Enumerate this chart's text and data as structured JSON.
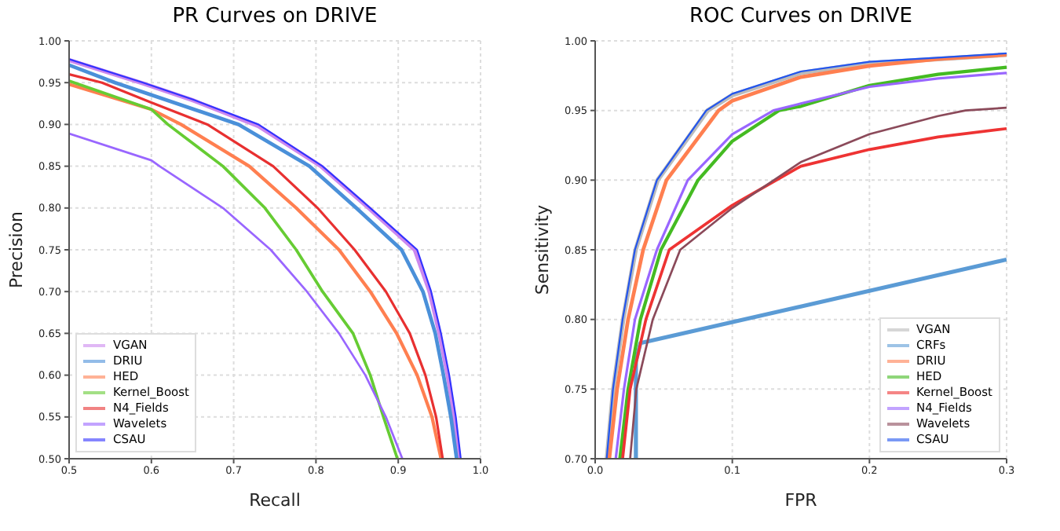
{
  "chart_data": [
    {
      "type": "line",
      "title": "PR Curves on DRIVE",
      "xlabel": "Recall",
      "ylabel": "Precision",
      "xlim": [
        0.5,
        1.0
      ],
      "ylim": [
        0.5,
        1.0
      ],
      "xticks": [
        0.5,
        0.6,
        0.7,
        0.8,
        0.9,
        {
          "value": 1.0,
          "label": "1.0"
        }
      ],
      "yticks": [
        {
          "value": 0.5,
          "label": "0.50"
        },
        0.55,
        {
          "value": 0.6,
          "label": "0.60"
        },
        0.65,
        {
          "value": 0.7,
          "label": "0.70"
        },
        0.75,
        {
          "value": 0.8,
          "label": "0.80"
        },
        0.85,
        {
          "value": 0.9,
          "label": "0.90"
        },
        0.95,
        {
          "value": 1.0,
          "label": "1.00"
        }
      ],
      "grid": true,
      "legend": "bottom left",
      "series": [
        {
          "name": "VGAN",
          "color": "#cc88ee",
          "x": [
            0.5,
            0.59,
            0.65,
            0.73,
            0.806,
            0.864,
            0.92,
            0.938,
            0.95,
            0.96,
            0.968,
            0.974
          ],
          "values": [
            0.977,
            0.949,
            0.929,
            0.898,
            0.85,
            0.8,
            0.75,
            0.7,
            0.65,
            0.6,
            0.55,
            0.5
          ]
        },
        {
          "name": "DRIU",
          "color": "#4a90d9",
          "x": [
            0.5,
            0.556,
            0.706,
            0.792,
            0.849,
            0.904,
            0.93,
            0.945,
            0.955,
            0.964,
            0.971
          ],
          "values": [
            0.971,
            0.95,
            0.9,
            0.85,
            0.8,
            0.75,
            0.7,
            0.65,
            0.6,
            0.55,
            0.5
          ]
        },
        {
          "name": "HED",
          "color": "#ff7f50",
          "x": [
            0.5,
            0.6,
            0.636,
            0.719,
            0.776,
            0.828,
            0.866,
            0.898,
            0.923,
            0.941,
            0.952
          ],
          "values": [
            0.948,
            0.918,
            0.9,
            0.85,
            0.8,
            0.75,
            0.7,
            0.65,
            0.6,
            0.55,
            0.5
          ]
        },
        {
          "name": "Kernel_Boost",
          "color": "#66cc33",
          "x": [
            0.5,
            0.6,
            0.62,
            0.687,
            0.738,
            0.776,
            0.808,
            0.845,
            0.866,
            0.882,
            0.899
          ],
          "values": [
            0.952,
            0.918,
            0.9,
            0.85,
            0.8,
            0.75,
            0.7,
            0.65,
            0.6,
            0.55,
            0.5
          ]
        },
        {
          "name": "N4_Fields",
          "color": "#e83030",
          "x": [
            0.5,
            0.54,
            0.598,
            0.668,
            0.748,
            0.802,
            0.847,
            0.885,
            0.914,
            0.933,
            0.946,
            0.954
          ],
          "values": [
            0.96,
            0.95,
            0.927,
            0.9,
            0.85,
            0.8,
            0.75,
            0.7,
            0.65,
            0.6,
            0.55,
            0.5
          ]
        },
        {
          "name": "Wavelets",
          "color": "#9966ff",
          "x": [
            0.5,
            0.6,
            0.61,
            0.687,
            0.745,
            0.789,
            0.828,
            0.86,
            0.885,
            0.905
          ],
          "values": [
            0.889,
            0.857,
            0.85,
            0.8,
            0.75,
            0.7,
            0.65,
            0.6,
            0.55,
            0.5
          ]
        },
        {
          "name": "CSAU",
          "color": "#3333ff",
          "x": [
            0.5,
            0.59,
            0.65,
            0.73,
            0.808,
            0.866,
            0.923,
            0.94,
            0.952,
            0.962,
            0.97,
            0.976
          ],
          "values": [
            0.978,
            0.95,
            0.93,
            0.9,
            0.85,
            0.8,
            0.75,
            0.7,
            0.65,
            0.6,
            0.55,
            0.5
          ]
        }
      ]
    },
    {
      "type": "line",
      "title": "ROC Curves on DRIVE",
      "xlabel": "FPR",
      "ylabel": "Sensitivity",
      "xlim": [
        0.0,
        0.3
      ],
      "ylim": [
        0.7,
        1.0
      ],
      "xticks": [
        {
          "value": 0.0,
          "label": "0.0"
        },
        0.1,
        0.2,
        0.3
      ],
      "yticks": [
        {
          "value": 0.7,
          "label": "0.70"
        },
        0.75,
        {
          "value": 0.8,
          "label": "0.80"
        },
        0.85,
        {
          "value": 0.9,
          "label": "0.90"
        },
        0.95,
        {
          "value": 1.0,
          "label": "1.00"
        }
      ],
      "grid": true,
      "legend": "bottom right",
      "series": [
        {
          "name": "VGAN",
          "color": "#bbbbbb",
          "x": [
            0.0086,
            0.0132,
            0.0204,
            0.0295,
            0.0455,
            0.082,
            0.1,
            0.15,
            0.2,
            0.25,
            0.3
          ],
          "values": [
            0.7,
            0.75,
            0.8,
            0.85,
            0.9,
            0.95,
            0.961,
            0.977,
            0.984,
            0.987,
            0.99
          ]
        },
        {
          "name": "CRFs",
          "color": "#5b9bd5",
          "x": [
            0.0297,
            0.0297,
            0.033,
            0.3
          ],
          "values": [
            0.7,
            0.77,
            0.783,
            0.843
          ]
        },
        {
          "name": "DRIU",
          "color": "#ff7f50",
          "x": [
            0.0103,
            0.016,
            0.024,
            0.035,
            0.052,
            0.09,
            0.1,
            0.15,
            0.2,
            0.25,
            0.3
          ],
          "values": [
            0.7,
            0.75,
            0.8,
            0.85,
            0.9,
            0.95,
            0.957,
            0.974,
            0.982,
            0.987,
            0.99
          ]
        },
        {
          "name": "HED",
          "color": "#44bb22",
          "x": [
            0.018,
            0.024,
            0.033,
            0.048,
            0.075,
            0.1,
            0.134,
            0.15,
            0.2,
            0.25,
            0.3
          ],
          "values": [
            0.7,
            0.75,
            0.8,
            0.85,
            0.9,
            0.928,
            0.95,
            0.953,
            0.968,
            0.976,
            0.981
          ]
        },
        {
          "name": "Kernel_Boost",
          "color": "#ee3333",
          "x": [
            0.02,
            0.0255,
            0.037,
            0.054,
            0.1,
            0.15,
            0.2,
            0.25,
            0.3
          ],
          "values": [
            0.7,
            0.75,
            0.8,
            0.85,
            0.882,
            0.91,
            0.922,
            0.931,
            0.937
          ]
        },
        {
          "name": "N4_Fields",
          "color": "#9966ff",
          "x": [
            0.015,
            0.021,
            0.029,
            0.045,
            0.0675,
            0.1,
            0.13,
            0.15,
            0.2,
            0.25,
            0.3
          ],
          "values": [
            0.7,
            0.75,
            0.8,
            0.85,
            0.9,
            0.933,
            0.95,
            0.955,
            0.967,
            0.973,
            0.977
          ]
        },
        {
          "name": "Wavelets",
          "color": "#8b4a5a",
          "x": [
            0.0255,
            0.03,
            0.042,
            0.062,
            0.1,
            0.15,
            0.2,
            0.25,
            0.27,
            0.3
          ],
          "values": [
            0.7,
            0.75,
            0.8,
            0.85,
            0.88,
            0.913,
            0.933,
            0.946,
            0.95,
            0.952
          ]
        },
        {
          "name": "CSAU",
          "color": "#2255ee",
          "x": [
            0.0084,
            0.013,
            0.02,
            0.029,
            0.045,
            0.081,
            0.1,
            0.15,
            0.2,
            0.25,
            0.3
          ],
          "values": [
            0.7,
            0.75,
            0.8,
            0.85,
            0.9,
            0.95,
            0.962,
            0.978,
            0.985,
            0.988,
            0.991
          ]
        }
      ]
    }
  ]
}
